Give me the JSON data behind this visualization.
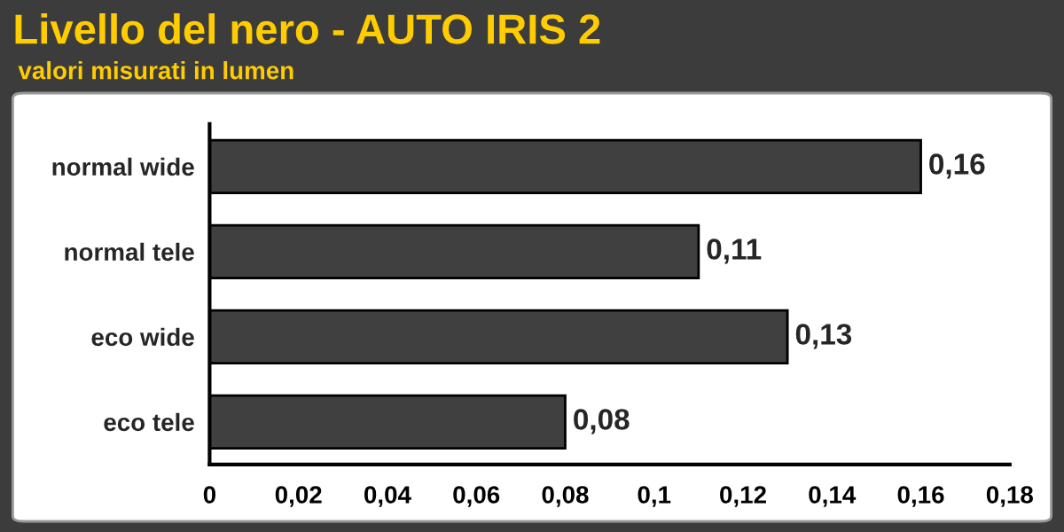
{
  "chart_data": {
    "type": "bar",
    "orientation": "horizontal",
    "title": "Livello del nero - AUTO IRIS 2",
    "subtitle": "valori misurati in lumen",
    "categories": [
      "normal wide",
      "normal tele",
      "eco wide",
      "eco tele"
    ],
    "values": [
      0.16,
      0.11,
      0.13,
      0.08
    ],
    "color": "#404040",
    "value_labels": [
      "0,16",
      "0,11",
      "0,13",
      "0,08"
    ],
    "xlim": [
      0,
      0.18
    ],
    "xticks": [
      0,
      {
        "value": 0.02,
        "label": "0,02"
      },
      {
        "value": 0.04,
        "label": "0,04"
      },
      {
        "value": 0.06,
        "label": "0,06"
      },
      {
        "value": 0.08,
        "label": "0,08"
      },
      {
        "value": 0.1,
        "label": "0,1"
      },
      {
        "value": 0.12,
        "label": "0,12"
      },
      {
        "value": 0.14,
        "label": "0,14"
      },
      {
        "value": 0.16,
        "label": "0,16"
      },
      {
        "value": 0.18,
        "label": "0,18"
      }
    ],
    "grid": false,
    "legend": false
  }
}
